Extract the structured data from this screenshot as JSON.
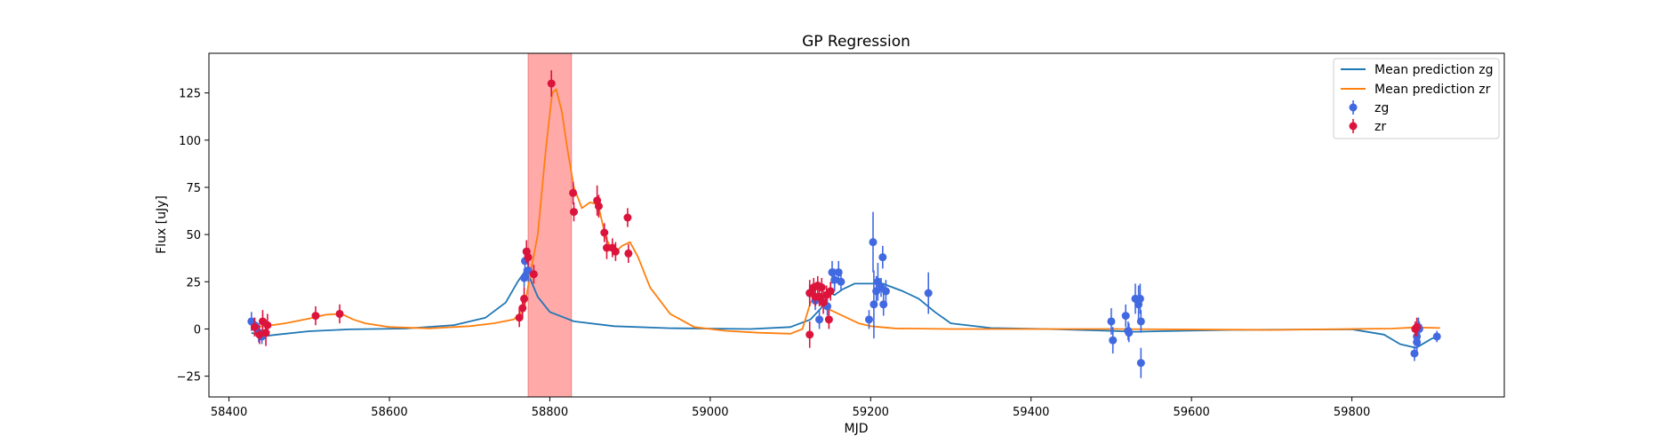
{
  "chart_data": {
    "type": "scatter",
    "title": "GP Regression",
    "xlabel": "MJD",
    "ylabel": "Flux [uJy]",
    "xlim": [
      58375,
      59990
    ],
    "ylim": [
      -36,
      146
    ],
    "xticks": [
      58400,
      58600,
      58800,
      59000,
      59200,
      59400,
      59600,
      59800
    ],
    "yticks": [
      -25,
      0,
      25,
      50,
      75,
      100,
      125
    ],
    "grid": false,
    "legend_position": "top-right",
    "shaded_region": {
      "x": [
        58773,
        58827
      ],
      "color": "#ff8c8c"
    },
    "lines": [
      {
        "name": "Mean prediction zg",
        "color": "#1f77b4",
        "points": [
          [
            58428,
            -2
          ],
          [
            58440,
            -4
          ],
          [
            58460,
            -3
          ],
          [
            58500,
            -1.2
          ],
          [
            58550,
            -0.2
          ],
          [
            58620,
            0.2
          ],
          [
            58680,
            2
          ],
          [
            58720,
            6
          ],
          [
            58745,
            14
          ],
          [
            58760,
            25
          ],
          [
            58768,
            30
          ],
          [
            58775,
            27
          ],
          [
            58785,
            17
          ],
          [
            58800,
            9
          ],
          [
            58830,
            4
          ],
          [
            58880,
            1.5
          ],
          [
            58950,
            0.4
          ],
          [
            59050,
            0
          ],
          [
            59100,
            1
          ],
          [
            59125,
            5
          ],
          [
            59138,
            11
          ],
          [
            59145,
            17
          ],
          [
            59150,
            19
          ],
          [
            59155,
            18
          ],
          [
            59165,
            21
          ],
          [
            59180,
            24
          ],
          [
            59200,
            24
          ],
          [
            59215,
            24
          ],
          [
            59240,
            20
          ],
          [
            59260,
            16
          ],
          [
            59280,
            9
          ],
          [
            59300,
            3
          ],
          [
            59350,
            0.5
          ],
          [
            59420,
            0
          ],
          [
            59500,
            -1
          ],
          [
            59530,
            -1.5
          ],
          [
            59560,
            -1.2
          ],
          [
            59650,
            -0.5
          ],
          [
            59800,
            -0.2
          ],
          [
            59840,
            -3
          ],
          [
            59860,
            -8
          ],
          [
            59880,
            -10
          ],
          [
            59900,
            -5
          ],
          [
            59910,
            -4
          ]
        ]
      },
      {
        "name": "Mean prediction zr",
        "color": "#ff7f0e",
        "points": [
          [
            58428,
            1
          ],
          [
            58445,
            1.5
          ],
          [
            58470,
            3
          ],
          [
            58500,
            5.5
          ],
          [
            58520,
            7.5
          ],
          [
            58540,
            8
          ],
          [
            58555,
            5
          ],
          [
            58570,
            3
          ],
          [
            58600,
            1
          ],
          [
            58650,
            0.3
          ],
          [
            58700,
            1.5
          ],
          [
            58730,
            3
          ],
          [
            58755,
            5
          ],
          [
            58768,
            10
          ],
          [
            58775,
            28
          ],
          [
            58785,
            50
          ],
          [
            58795,
            95
          ],
          [
            58803,
            125
          ],
          [
            58808,
            127
          ],
          [
            58815,
            115
          ],
          [
            58822,
            95
          ],
          [
            58830,
            75
          ],
          [
            58840,
            64
          ],
          [
            58850,
            67
          ],
          [
            58860,
            66
          ],
          [
            58870,
            48
          ],
          [
            58880,
            40
          ],
          [
            58890,
            44
          ],
          [
            58900,
            46
          ],
          [
            58910,
            38
          ],
          [
            58925,
            22
          ],
          [
            58950,
            8
          ],
          [
            58980,
            1
          ],
          [
            59020,
            -1
          ],
          [
            59060,
            -2
          ],
          [
            59100,
            -2.5
          ],
          [
            59115,
            0
          ],
          [
            59125,
            14
          ],
          [
            59132,
            17
          ],
          [
            59140,
            14
          ],
          [
            59150,
            10
          ],
          [
            59165,
            7
          ],
          [
            59185,
            3
          ],
          [
            59200,
            1.5
          ],
          [
            59230,
            0.3
          ],
          [
            59300,
            0
          ],
          [
            59500,
            0
          ],
          [
            59700,
            -0.5
          ],
          [
            59850,
            0.2
          ],
          [
            59880,
            0.8
          ],
          [
            59910,
            0.5
          ]
        ]
      }
    ],
    "series": [
      {
        "name": "zg",
        "color": "#4169e1",
        "points": [
          [
            58428,
            4,
            5
          ],
          [
            58432,
            2,
            4
          ],
          [
            58437,
            -2,
            5
          ],
          [
            58441,
            -4,
            4
          ],
          [
            58768,
            27,
            5
          ],
          [
            58769,
            36,
            6
          ],
          [
            58771,
            41,
            6
          ],
          [
            58773,
            31,
            6
          ],
          [
            59124,
            19,
            5
          ],
          [
            59131,
            15,
            5
          ],
          [
            59136,
            5,
            5
          ],
          [
            59146,
            12,
            5
          ],
          [
            59152,
            30,
            6
          ],
          [
            59155,
            26,
            6
          ],
          [
            59160,
            30,
            6
          ],
          [
            59163,
            25,
            5
          ],
          [
            59198,
            5,
            5
          ],
          [
            59203,
            46,
            16
          ],
          [
            59204,
            13,
            18
          ],
          [
            59207,
            20,
            8
          ],
          [
            59209,
            25,
            10
          ],
          [
            59213,
            22,
            5
          ],
          [
            59215,
            38,
            6
          ],
          [
            59216,
            13,
            6
          ],
          [
            59219,
            20,
            6
          ],
          [
            59272,
            19,
            11
          ],
          [
            59500,
            4,
            7
          ],
          [
            59502,
            -6,
            7
          ],
          [
            59518,
            7,
            6
          ],
          [
            59521,
            -1,
            5
          ],
          [
            59522,
            -2,
            5
          ],
          [
            59530,
            16,
            8
          ],
          [
            59534,
            13,
            10
          ],
          [
            59536,
            16,
            8
          ],
          [
            59537,
            4,
            6
          ],
          [
            59537,
            -18,
            8
          ],
          [
            59878,
            -13,
            4
          ],
          [
            59881,
            -4,
            5
          ],
          [
            59881,
            -7,
            5
          ],
          [
            59883,
            1,
            5
          ],
          [
            59884,
            0,
            4
          ],
          [
            59906,
            -4,
            3
          ]
        ]
      },
      {
        "name": "zr",
        "color": "#dc143c",
        "points": [
          [
            58432,
            1,
            5
          ],
          [
            58438,
            -3,
            5
          ],
          [
            58442,
            4,
            6
          ],
          [
            58446,
            -2,
            7
          ],
          [
            58448,
            2,
            6
          ],
          [
            58508,
            7,
            5
          ],
          [
            58538,
            8,
            5
          ],
          [
            58762,
            6,
            5
          ],
          [
            58766,
            11,
            5
          ],
          [
            58768,
            16,
            6
          ],
          [
            58771,
            41,
            6
          ],
          [
            58773,
            38,
            5
          ],
          [
            58780,
            29,
            5
          ],
          [
            58802,
            130,
            7
          ],
          [
            58829,
            72,
            6
          ],
          [
            58830,
            62,
            5
          ],
          [
            58859,
            68,
            8
          ],
          [
            58861,
            65,
            6
          ],
          [
            58868,
            51,
            5
          ],
          [
            58871,
            43,
            6
          ],
          [
            58878,
            43,
            5
          ],
          [
            58882,
            41,
            5
          ],
          [
            58897,
            59,
            5
          ],
          [
            58898,
            40,
            5
          ],
          [
            59124,
            -3,
            7
          ],
          [
            59124,
            19,
            7
          ],
          [
            59129,
            22,
            5
          ],
          [
            59131,
            17,
            5
          ],
          [
            59134,
            23,
            5
          ],
          [
            59136,
            17,
            5
          ],
          [
            59139,
            22,
            5
          ],
          [
            59141,
            14,
            6
          ],
          [
            59145,
            18,
            5
          ],
          [
            59148,
            5,
            5
          ],
          [
            59150,
            20,
            5
          ],
          [
            59879,
            0,
            4
          ],
          [
            59881,
            1,
            5
          ]
        ]
      }
    ]
  }
}
